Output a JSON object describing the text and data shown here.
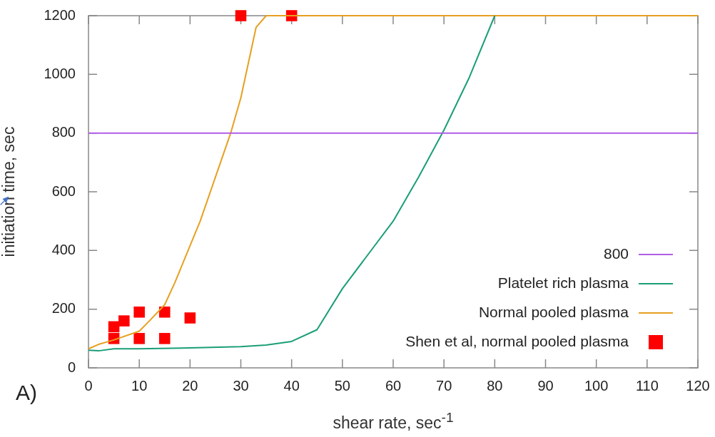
{
  "chart_data": {
    "type": "line",
    "xlabel": "shear rate, sec$^{-1}$",
    "ylabel": "initiation time, sec",
    "annotations": [
      "A)"
    ],
    "xlim": [
      0,
      120
    ],
    "xticks": [
      0,
      10,
      20,
      30,
      40,
      50,
      60,
      70,
      80,
      90,
      100,
      110,
      120
    ],
    "ylim": [
      0,
      1200
    ],
    "yticks": [
      0,
      200,
      400,
      600,
      800,
      1000,
      1200
    ],
    "legend": "bottom right",
    "grid": false,
    "series": [
      {
        "name": "800",
        "marker": "none",
        "color": "#b15de8",
        "x": [
          0,
          120
        ],
        "values": [
          800,
          800
        ]
      },
      {
        "name": "Platelet rich plasma",
        "marker": "none",
        "color": "#1a9e77",
        "x": [
          0,
          2,
          5,
          10,
          20,
          30,
          35,
          40,
          45,
          50,
          55,
          60,
          65,
          70,
          75,
          80
        ],
        "values": [
          60,
          58,
          65,
          65,
          68,
          72,
          78,
          90,
          130,
          270,
          385,
          500,
          650,
          810,
          990,
          1200
        ]
      },
      {
        "name": "Normal pooled plasma",
        "marker": "none",
        "color": "#e6a020",
        "x": [
          0,
          2,
          5,
          10,
          12,
          15,
          17,
          22,
          25,
          28,
          30,
          33,
          35,
          120
        ],
        "values": [
          65,
          80,
          95,
          125,
          160,
          215,
          290,
          500,
          650,
          800,
          920,
          1160,
          1200,
          1200
        ]
      },
      {
        "name": "Shen et al, normal pooled plasma",
        "type": "scatter",
        "marker": "square",
        "color": "#ff0000",
        "x": [
          5,
          5,
          7,
          10,
          10,
          15,
          15,
          20,
          30,
          40
        ],
        "values": [
          140,
          100,
          160,
          190,
          100,
          190,
          100,
          170,
          1200,
          1200
        ]
      }
    ]
  }
}
